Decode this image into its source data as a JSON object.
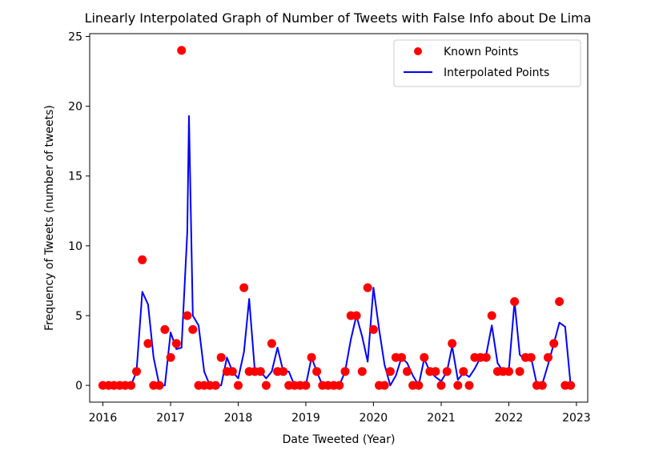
{
  "chart_data": {
    "type": "scatter",
    "title": "Linearly Interpolated Graph of Number of Tweets with False Info about De Lima",
    "xlabel": "Date Tweeted (Year)",
    "ylabel": "Frequency of Tweets (number of tweets)",
    "xlim": [
      "2015-10-22",
      "2023-03-03"
    ],
    "ylim": [
      -1.2,
      25.2
    ],
    "x_ticks": [
      "2016",
      "2017",
      "2018",
      "2019",
      "2020",
      "2021",
      "2022",
      "2023"
    ],
    "y_ticks": [
      "0",
      "5",
      "10",
      "15",
      "20",
      "25"
    ],
    "legend_position": "top-right",
    "grid": false,
    "series": [
      {
        "name": "Known Points",
        "kind": "scatter",
        "color": "#ff0000",
        "points": [
          [
            "2016-01-01",
            0
          ],
          [
            "2016-02-01",
            0
          ],
          [
            "2016-03-01",
            0
          ],
          [
            "2016-04-01",
            0
          ],
          [
            "2016-05-01",
            0
          ],
          [
            "2016-06-01",
            0
          ],
          [
            "2016-07-01",
            1
          ],
          [
            "2016-08-01",
            9
          ],
          [
            "2016-09-01",
            3
          ],
          [
            "2016-10-01",
            0
          ],
          [
            "2016-11-01",
            0
          ],
          [
            "2016-12-01",
            4
          ],
          [
            "2017-01-01",
            2
          ],
          [
            "2017-02-01",
            3
          ],
          [
            "2017-03-01",
            24
          ],
          [
            "2017-04-01",
            5
          ],
          [
            "2017-05-01",
            4
          ],
          [
            "2017-06-01",
            0
          ],
          [
            "2017-07-01",
            0
          ],
          [
            "2017-08-01",
            0
          ],
          [
            "2017-09-01",
            0
          ],
          [
            "2017-10-01",
            2
          ],
          [
            "2017-11-01",
            1
          ],
          [
            "2017-12-01",
            1
          ],
          [
            "2018-01-01",
            0
          ],
          [
            "2018-02-01",
            7
          ],
          [
            "2018-03-01",
            1
          ],
          [
            "2018-04-01",
            1
          ],
          [
            "2018-05-01",
            1
          ],
          [
            "2018-06-01",
            0
          ],
          [
            "2018-07-01",
            3
          ],
          [
            "2018-08-01",
            1
          ],
          [
            "2018-09-01",
            1
          ],
          [
            "2018-10-01",
            0
          ],
          [
            "2018-11-01",
            0
          ],
          [
            "2018-12-01",
            0
          ],
          [
            "2019-01-01",
            0
          ],
          [
            "2019-02-01",
            2
          ],
          [
            "2019-03-01",
            1
          ],
          [
            "2019-04-01",
            0
          ],
          [
            "2019-05-01",
            0
          ],
          [
            "2019-06-01",
            0
          ],
          [
            "2019-07-01",
            0
          ],
          [
            "2019-08-01",
            1
          ],
          [
            "2019-09-01",
            5
          ],
          [
            "2019-10-01",
            5
          ],
          [
            "2019-11-01",
            1
          ],
          [
            "2019-12-01",
            7
          ],
          [
            "2020-01-01",
            4
          ],
          [
            "2020-02-01",
            0
          ],
          [
            "2020-03-01",
            0
          ],
          [
            "2020-04-01",
            1
          ],
          [
            "2020-05-01",
            2
          ],
          [
            "2020-06-01",
            2
          ],
          [
            "2020-07-01",
            1
          ],
          [
            "2020-08-01",
            0
          ],
          [
            "2020-09-01",
            0
          ],
          [
            "2020-10-01",
            2
          ],
          [
            "2020-11-01",
            1
          ],
          [
            "2020-12-01",
            1
          ],
          [
            "2021-01-01",
            0
          ],
          [
            "2021-02-01",
            1
          ],
          [
            "2021-03-01",
            3
          ],
          [
            "2021-04-01",
            0
          ],
          [
            "2021-05-01",
            1
          ],
          [
            "2021-06-01",
            0
          ],
          [
            "2021-07-01",
            2
          ],
          [
            "2021-08-01",
            2
          ],
          [
            "2021-09-01",
            2
          ],
          [
            "2021-10-01",
            5
          ],
          [
            "2021-11-01",
            1
          ],
          [
            "2021-12-01",
            1
          ],
          [
            "2022-01-01",
            1
          ],
          [
            "2022-02-01",
            6
          ],
          [
            "2022-03-01",
            1
          ],
          [
            "2022-04-01",
            2
          ],
          [
            "2022-05-01",
            2
          ],
          [
            "2022-06-01",
            0
          ],
          [
            "2022-07-01",
            0
          ],
          [
            "2022-08-01",
            2
          ],
          [
            "2022-09-01",
            3
          ],
          [
            "2022-10-01",
            6
          ],
          [
            "2022-11-01",
            0
          ],
          [
            "2022-12-01",
            0
          ]
        ]
      },
      {
        "name": "Interpolated Points",
        "kind": "line",
        "color": "#0000ff",
        "points": [
          [
            "2016-01-01",
            0
          ],
          [
            "2016-02-01",
            0
          ],
          [
            "2016-03-01",
            0
          ],
          [
            "2016-04-01",
            0
          ],
          [
            "2016-05-01",
            0
          ],
          [
            "2016-06-01",
            0
          ],
          [
            "2016-07-01",
            1
          ],
          [
            "2016-08-01",
            6.7
          ],
          [
            "2016-09-01",
            5.8
          ],
          [
            "2016-10-01",
            2
          ],
          [
            "2016-11-01",
            0
          ],
          [
            "2016-12-01",
            0
          ],
          [
            "2017-01-01",
            3.8
          ],
          [
            "2017-02-01",
            2.6
          ],
          [
            "2017-03-01",
            2.7
          ],
          [
            "2017-04-01",
            11
          ],
          [
            "2017-04-10",
            19.3
          ],
          [
            "2017-05-01",
            5
          ],
          [
            "2017-06-01",
            4.3
          ],
          [
            "2017-07-01",
            1
          ],
          [
            "2017-08-01",
            0
          ],
          [
            "2017-09-01",
            0
          ],
          [
            "2017-10-01",
            0
          ],
          [
            "2017-11-01",
            2
          ],
          [
            "2017-12-01",
            1
          ],
          [
            "2018-01-01",
            0.5
          ],
          [
            "2018-02-01",
            2.4
          ],
          [
            "2018-03-01",
            6.2
          ],
          [
            "2018-04-01",
            1
          ],
          [
            "2018-05-01",
            1
          ],
          [
            "2018-06-01",
            0.5
          ],
          [
            "2018-07-01",
            1
          ],
          [
            "2018-08-01",
            2.7
          ],
          [
            "2018-09-01",
            1
          ],
          [
            "2018-10-01",
            1
          ],
          [
            "2018-11-01",
            0
          ],
          [
            "2018-12-01",
            0
          ],
          [
            "2019-01-01",
            0
          ],
          [
            "2019-02-01",
            2
          ],
          [
            "2019-03-01",
            1
          ],
          [
            "2019-04-01",
            0
          ],
          [
            "2019-05-01",
            0
          ],
          [
            "2019-06-01",
            0
          ],
          [
            "2019-07-01",
            0
          ],
          [
            "2019-08-01",
            1
          ],
          [
            "2019-09-01",
            3.3
          ],
          [
            "2019-10-01",
            5
          ],
          [
            "2019-11-01",
            3.5
          ],
          [
            "2019-12-01",
            1.7
          ],
          [
            "2020-01-01",
            7
          ],
          [
            "2020-02-01",
            4
          ],
          [
            "2020-03-01",
            1.5
          ],
          [
            "2020-04-01",
            0
          ],
          [
            "2020-05-01",
            0.7
          ],
          [
            "2020-06-01",
            2
          ],
          [
            "2020-07-01",
            1.6
          ],
          [
            "2020-08-01",
            0.7
          ],
          [
            "2020-09-01",
            0
          ],
          [
            "2020-10-01",
            1.9
          ],
          [
            "2020-11-01",
            1
          ],
          [
            "2020-12-01",
            0.6
          ],
          [
            "2021-01-01",
            0.3
          ],
          [
            "2021-02-01",
            1
          ],
          [
            "2021-03-01",
            2.8
          ],
          [
            "2021-04-01",
            0.4
          ],
          [
            "2021-05-01",
            0.9
          ],
          [
            "2021-06-01",
            0.6
          ],
          [
            "2021-07-01",
            1.2
          ],
          [
            "2021-08-01",
            2
          ],
          [
            "2021-09-01",
            2.2
          ],
          [
            "2021-10-01",
            4.3
          ],
          [
            "2021-11-01",
            1.6
          ],
          [
            "2021-12-01",
            1
          ],
          [
            "2022-01-01",
            1.1
          ],
          [
            "2022-02-01",
            6
          ],
          [
            "2022-03-01",
            2.2
          ],
          [
            "2022-04-01",
            1.8
          ],
          [
            "2022-05-01",
            2
          ],
          [
            "2022-06-01",
            0.1
          ],
          [
            "2022-07-01",
            0.1
          ],
          [
            "2022-08-01",
            1.5
          ],
          [
            "2022-09-01",
            3
          ],
          [
            "2022-10-01",
            4.5
          ],
          [
            "2022-11-01",
            4.2
          ],
          [
            "2022-12-01",
            0
          ],
          [
            "2022-12-20",
            0
          ]
        ]
      }
    ]
  }
}
